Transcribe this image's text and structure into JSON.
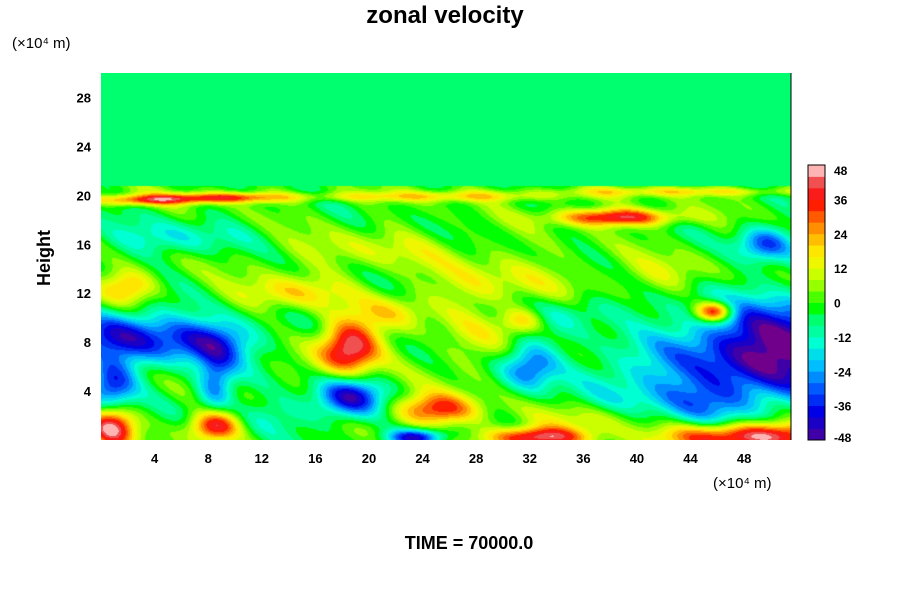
{
  "chart_data": {
    "type": "heatmap",
    "title": "zonal velocity",
    "ylabel": "Height",
    "x_unit": "(×10⁴ m)",
    "y_unit": "(×10⁴ m)",
    "xlim": [
      0,
      51.5
    ],
    "ylim": [
      0,
      30
    ],
    "x_ticks": [
      4,
      8,
      12,
      16,
      20,
      24,
      28,
      32,
      36,
      40,
      44,
      48
    ],
    "y_ticks": [
      4,
      8,
      12,
      16,
      20,
      24,
      28
    ],
    "colorbar": {
      "min": -48,
      "max": 48,
      "step": 4,
      "ticks": [
        48,
        36,
        24,
        12,
        0,
        -12,
        -24,
        -36,
        -48
      ]
    },
    "features": [
      {
        "x": 18.5,
        "y": 7.5,
        "sx": 1.6,
        "sy": 1.6,
        "value": 48
      },
      {
        "x": 18.5,
        "y": 3.5,
        "sx": 1.8,
        "sy": 1.2,
        "value": -40
      },
      {
        "x": 8.5,
        "y": 1.2,
        "sx": 1.3,
        "sy": 0.9,
        "value": 46
      },
      {
        "x": 0.8,
        "y": 1.0,
        "sx": 1.2,
        "sy": 1.2,
        "value": 44
      },
      {
        "x": 2.0,
        "y": 8.5,
        "sx": 3.5,
        "sy": 1.5,
        "value": -36
      },
      {
        "x": 8.5,
        "y": 8.0,
        "sx": 2.5,
        "sy": 1.3,
        "value": -30
      },
      {
        "x": 0.8,
        "y": 4.5,
        "sx": 1.3,
        "sy": 1.5,
        "value": -34
      },
      {
        "x": 8.5,
        "y": 4.5,
        "sx": 1.0,
        "sy": 1.8,
        "value": -28
      },
      {
        "x": 25.0,
        "y": 2.5,
        "sx": 2.2,
        "sy": 0.9,
        "value": 36
      },
      {
        "x": 23.5,
        "y": 0.2,
        "sx": 1.5,
        "sy": 0.5,
        "value": -42
      },
      {
        "x": 32.5,
        "y": 0.2,
        "sx": 2.5,
        "sy": 0.6,
        "value": 48
      },
      {
        "x": 32.0,
        "y": 6.0,
        "sx": 1.5,
        "sy": 1.4,
        "value": -30
      },
      {
        "x": 31.5,
        "y": 9.8,
        "sx": 1.2,
        "sy": 0.8,
        "value": 24
      },
      {
        "x": 38.5,
        "y": 18.2,
        "sx": 3.2,
        "sy": 0.5,
        "value": 42
      },
      {
        "x": 50.5,
        "y": 7.5,
        "sx": 5.0,
        "sy": 2.8,
        "value": -52
      },
      {
        "x": 48.5,
        "y": 0.3,
        "sx": 4.5,
        "sy": 0.8,
        "value": 50
      },
      {
        "x": 45.8,
        "y": 10.5,
        "sx": 1.0,
        "sy": 0.6,
        "value": 48
      },
      {
        "x": 49.5,
        "y": 16.0,
        "sx": 1.5,
        "sy": 1.0,
        "value": -30
      },
      {
        "x": 3.0,
        "y": 19.6,
        "sx": 3.0,
        "sy": 0.3,
        "value": 28
      },
      {
        "x": 9.0,
        "y": 19.8,
        "sx": 3.5,
        "sy": 0.3,
        "value": 32
      },
      {
        "x": 25.0,
        "y": 19.9,
        "sx": 8.0,
        "sy": 0.3,
        "value": 18
      },
      {
        "x": 44.0,
        "y": 20.3,
        "sx": 8.0,
        "sy": 0.25,
        "value": 16
      },
      {
        "x": 5.0,
        "y": 16.5,
        "sx": 4.0,
        "sy": 1.0,
        "value": -14
      },
      {
        "x": 20.0,
        "y": 15.5,
        "sx": 5.0,
        "sy": 1.2,
        "value": 10
      },
      {
        "x": 14.0,
        "y": 12.0,
        "sx": 3.0,
        "sy": 1.0,
        "value": 18
      },
      {
        "x": 2.0,
        "y": 12.5,
        "sx": 1.5,
        "sy": 1.0,
        "value": 24
      },
      {
        "x": 30.0,
        "y": 13.0,
        "sx": 4.0,
        "sy": 1.5,
        "value": 12
      },
      {
        "x": 42.0,
        "y": 13.5,
        "sx": 3.0,
        "sy": 1.2,
        "value": 10
      },
      {
        "x": 27.5,
        "y": 8.0,
        "sx": 1.8,
        "sy": 2.5,
        "value": 10
      },
      {
        "x": 40.0,
        "y": 5.0,
        "sx": 3.0,
        "sy": 2.0,
        "value": -14
      },
      {
        "x": 22.0,
        "y": 10.5,
        "sx": 2.0,
        "sy": 1.0,
        "value": 14
      },
      {
        "x": 12.5,
        "y": 2.0,
        "sx": 2.5,
        "sy": 1.0,
        "value": -10
      },
      {
        "x": 37.0,
        "y": 1.8,
        "sx": 4.0,
        "sy": 0.8,
        "value": 10
      },
      {
        "x": 45.0,
        "y": 3.0,
        "sx": 3.0,
        "sy": 1.5,
        "value": -20
      },
      {
        "x": 35.0,
        "y": 10.5,
        "sx": 3.0,
        "sy": 1.0,
        "value": -12
      }
    ]
  },
  "footer": {
    "time_label": "TIME = 70000.0"
  }
}
